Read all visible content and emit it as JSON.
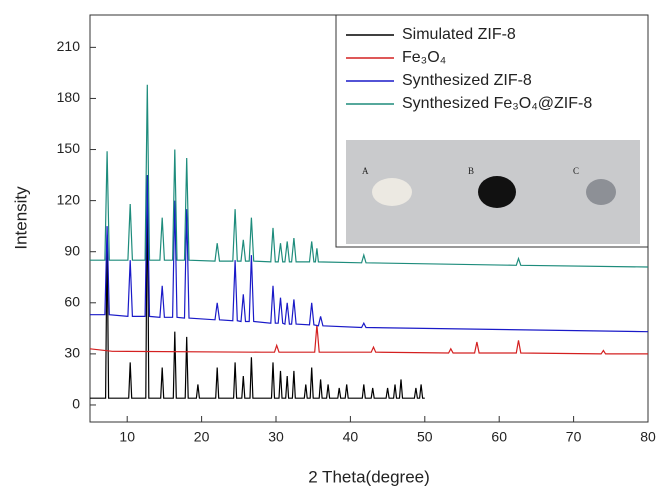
{
  "chart_data": {
    "type": "line",
    "x_label": "2 Theta(degree)",
    "y_label": "Intensity",
    "xlim": [
      5,
      80
    ],
    "xticks": [
      10,
      20,
      30,
      40,
      50,
      60,
      70,
      80
    ],
    "ylim": [
      -10,
      229
    ],
    "yticks": [
      0,
      30,
      60,
      90,
      120,
      150,
      180,
      210
    ],
    "legend": "top-right",
    "inset_labels": [
      "A",
      "B",
      "C"
    ],
    "series": [
      {
        "name": "Simulated ZIF-8",
        "color": "#000000",
        "x": [
          5,
          7.1,
          7.3,
          7.5,
          10.2,
          10.4,
          10.6,
          12.5,
          12.7,
          12.9,
          14.5,
          14.7,
          14.9,
          16.2,
          16.4,
          16.6,
          17.8,
          18.0,
          18.2,
          19.3,
          19.5,
          19.7,
          21.9,
          22.1,
          22.3,
          24.3,
          24.5,
          24.7,
          25.4,
          25.6,
          25.8,
          26.5,
          26.7,
          26.9,
          29.4,
          29.6,
          29.8,
          30.4,
          30.6,
          30.8,
          31.3,
          31.5,
          31.7,
          32.2,
          32.4,
          32.6,
          33.8,
          34.0,
          34.2,
          34.6,
          34.8,
          35.0,
          35.8,
          36.0,
          36.2,
          36.8,
          37.0,
          37.2,
          38.3,
          38.5,
          38.7,
          39.3,
          39.5,
          39.7,
          41.6,
          41.8,
          42.0,
          42.8,
          43.0,
          43.2,
          44.8,
          45.0,
          45.2,
          45.8,
          46.0,
          46.2,
          46.6,
          46.8,
          47.0,
          48.6,
          48.8,
          49.0,
          49.3,
          49.5,
          49.7,
          50
        ],
        "values": [
          4,
          4,
          100,
          4,
          4,
          25,
          4,
          4,
          135,
          4,
          4,
          22,
          4,
          4,
          43,
          4,
          4,
          40,
          4,
          4,
          12,
          4,
          4,
          22,
          4,
          4,
          25,
          4,
          4,
          17,
          4,
          4,
          28,
          4,
          4,
          25,
          4,
          4,
          20,
          4,
          4,
          17,
          4,
          4,
          20,
          4,
          4,
          12,
          4,
          4,
          22,
          4,
          4,
          15,
          4,
          4,
          12,
          4,
          4,
          10,
          4,
          4,
          12,
          4,
          4,
          12,
          4,
          4,
          10,
          4,
          4,
          10,
          4,
          4,
          12,
          4,
          4,
          15,
          4,
          4,
          10,
          4,
          4,
          12,
          4,
          4
        ]
      },
      {
        "name": "Fe₃O₄",
        "color": "#d42020",
        "x": [
          5,
          8,
          28,
          29.8,
          30.1,
          30.4,
          35.2,
          35.5,
          35.8,
          42.8,
          43.1,
          43.4,
          53.2,
          53.5,
          53.8,
          56.7,
          57.0,
          57.3,
          62.3,
          62.6,
          62.9,
          73.7,
          74.0,
          74.3,
          80
        ],
        "values": [
          33,
          31.5,
          31,
          31,
          35,
          31,
          31,
          47,
          31,
          31,
          34,
          31,
          30.5,
          33,
          30.5,
          30.5,
          37,
          30.5,
          30.5,
          38,
          30.5,
          30,
          32,
          30,
          30
        ]
      },
      {
        "name": "Synthesized ZIF-8",
        "color": "#1a1ac8",
        "x": [
          5,
          7.0,
          7.3,
          7.6,
          10.1,
          10.4,
          10.7,
          12.4,
          12.7,
          13.0,
          14.4,
          14.7,
          15.0,
          16.1,
          16.4,
          16.7,
          17.7,
          18.0,
          18.3,
          21.8,
          22.1,
          22.4,
          24.2,
          24.5,
          24.8,
          25.3,
          25.6,
          25.9,
          26.4,
          26.7,
          27.0,
          29.3,
          29.6,
          29.9,
          30.3,
          30.6,
          30.9,
          31.2,
          31.5,
          31.8,
          32.1,
          32.4,
          32.7,
          34.5,
          34.8,
          35.1,
          35.7,
          36.0,
          36.3,
          41.5,
          41.8,
          42.1,
          80
        ],
        "values": [
          53,
          53,
          105,
          53,
          52,
          85,
          52,
          52,
          135,
          52,
          51.5,
          70,
          51.5,
          51.5,
          120,
          51.5,
          51,
          115,
          51,
          50,
          60,
          50,
          49.5,
          85,
          49.5,
          49,
          65,
          49,
          49,
          88,
          49,
          48,
          70,
          48,
          48,
          63,
          48,
          47.5,
          60,
          47.5,
          47.5,
          62,
          47.5,
          47,
          60,
          47,
          46.5,
          52,
          46.5,
          45.5,
          48,
          45.5,
          43
        ]
      },
      {
        "name": "Synthesized Fe₃O₄@ZIF-8",
        "color": "#1e8c7c",
        "x": [
          5,
          7.0,
          7.3,
          7.6,
          10.1,
          10.4,
          10.7,
          12.4,
          12.7,
          13.0,
          14.4,
          14.7,
          15.0,
          16.1,
          16.4,
          16.7,
          17.7,
          18.0,
          18.3,
          21.8,
          22.1,
          22.4,
          24.2,
          24.5,
          24.8,
          25.3,
          25.6,
          25.9,
          26.4,
          26.7,
          27.0,
          29.3,
          29.6,
          29.9,
          30.3,
          30.6,
          30.9,
          31.2,
          31.5,
          31.8,
          32.1,
          32.4,
          32.7,
          34.5,
          34.8,
          35.1,
          35.3,
          35.5,
          35.7,
          41.5,
          41.8,
          42.1,
          62.3,
          62.6,
          62.9,
          80
        ],
        "values": [
          85,
          85,
          149,
          85,
          85,
          118,
          85,
          85,
          188,
          85,
          85,
          110,
          85,
          85,
          150,
          85,
          85,
          145,
          85,
          84.5,
          95,
          84.5,
          84.5,
          115,
          84.5,
          84.5,
          97,
          84.5,
          84.5,
          110,
          84.5,
          84,
          104,
          84,
          84,
          95,
          84,
          84,
          96,
          84,
          84,
          98,
          84,
          84,
          96,
          84,
          84,
          92,
          84,
          83.5,
          88,
          83.5,
          82,
          86,
          82,
          81
        ]
      }
    ]
  }
}
